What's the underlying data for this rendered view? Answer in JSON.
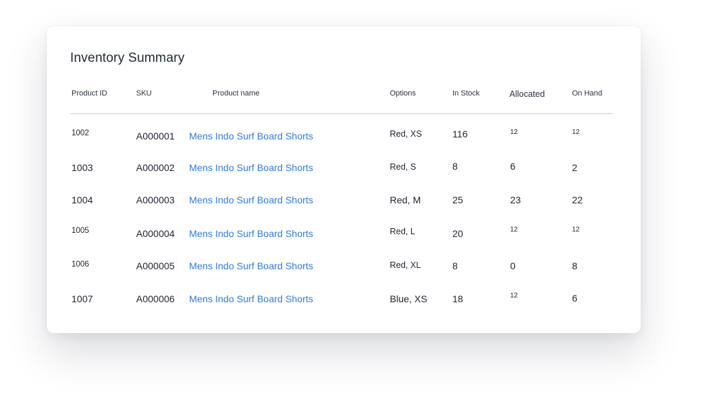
{
  "title": "Inventory Summary",
  "columns": {
    "product_id": "Product ID",
    "sku": "SKU",
    "product_name": "Product name",
    "options": "Options",
    "in_stock": "In Stock",
    "allocated": "Allocated",
    "on_hand": "On Hand"
  },
  "rows": [
    {
      "product_id": "1002",
      "sku": "A000001",
      "product_name": "Mens Indo Surf Board Shorts",
      "options": "Red, XS",
      "in_stock": "116",
      "allocated": "12",
      "on_hand": "12"
    },
    {
      "product_id": "1003",
      "sku": "A000002",
      "product_name": "Mens Indo Surf Board Shorts",
      "options": "Red, S",
      "in_stock": "8",
      "allocated": "6",
      "on_hand": "2"
    },
    {
      "product_id": "1004",
      "sku": "A000003",
      "product_name": "Mens Indo Surf Board Shorts",
      "options": "Red, M",
      "in_stock": "25",
      "allocated": "23",
      "on_hand": "22"
    },
    {
      "product_id": "1005",
      "sku": "A000004",
      "product_name": "Mens Indo Surf Board Shorts",
      "options": "Red, L",
      "in_stock": "20",
      "allocated": "12",
      "on_hand": "12"
    },
    {
      "product_id": "1006",
      "sku": "A000005",
      "product_name": "Mens Indo Surf Board Shorts",
      "options": "Red, XL",
      "in_stock": "8",
      "allocated": "0",
      "on_hand": "8"
    },
    {
      "product_id": "1007",
      "sku": "A000006",
      "product_name": "Mens Indo Surf Board Shorts",
      "options": "Blue, XS",
      "in_stock": "18",
      "allocated": "12",
      "on_hand": "6"
    }
  ],
  "colors": {
    "link": "#2f7be5",
    "text": "#1f2430",
    "divider": "#c9ccd3"
  }
}
